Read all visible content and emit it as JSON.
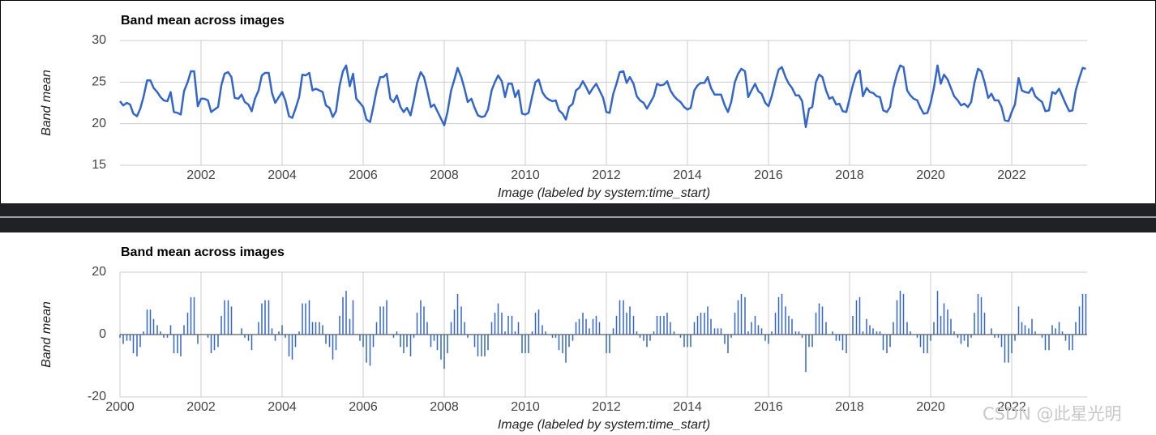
{
  "chart_data": [
    {
      "type": "line",
      "title": "Band mean across images",
      "y_label": "Band mean",
      "x_label": "Image (labeled by system:time_start)",
      "color": "#3366cc",
      "xlim": [
        2000,
        2023.86
      ],
      "xticks": [
        2002,
        2004,
        2006,
        2008,
        2010,
        2012,
        2014,
        2016,
        2018,
        2020,
        2022
      ],
      "ylim": [
        15,
        30
      ],
      "yticks": [
        15,
        20,
        25,
        30
      ],
      "grid": true,
      "x": [
        2000.0,
        2000.08,
        2000.17,
        2000.25,
        2000.33,
        2000.42,
        2000.5,
        2000.58,
        2000.67,
        2000.75,
        2000.83,
        2000.92,
        2001.0,
        2001.08,
        2001.17,
        2001.25,
        2001.33,
        2001.42,
        2001.5,
        2001.58,
        2001.67,
        2001.75,
        2001.83,
        2001.92,
        2002.0,
        2002.08,
        2002.17,
        2002.25,
        2002.33,
        2002.42,
        2002.5,
        2002.58,
        2002.67,
        2002.75,
        2002.83,
        2002.92,
        2003.0,
        2003.08,
        2003.17,
        2003.25,
        2003.33,
        2003.42,
        2003.5,
        2003.58,
        2003.67,
        2003.75,
        2003.83,
        2003.92,
        2004.0,
        2004.08,
        2004.17,
        2004.25,
        2004.33,
        2004.42,
        2004.5,
        2004.58,
        2004.67,
        2004.75,
        2004.83,
        2004.92,
        2005.0,
        2005.08,
        2005.17,
        2005.25,
        2005.33,
        2005.42,
        2005.5,
        2005.58,
        2005.67,
        2005.75,
        2005.83,
        2005.92,
        2006.0,
        2006.08,
        2006.17,
        2006.25,
        2006.33,
        2006.42,
        2006.5,
        2006.58,
        2006.67,
        2006.75,
        2006.83,
        2006.92,
        2007.0,
        2007.08,
        2007.17,
        2007.25,
        2007.33,
        2007.42,
        2007.5,
        2007.58,
        2007.67,
        2007.75,
        2007.83,
        2007.92,
        2008.0,
        2008.08,
        2008.17,
        2008.25,
        2008.33,
        2008.42,
        2008.5,
        2008.58,
        2008.67,
        2008.75,
        2008.83,
        2008.92,
        2009.0,
        2009.08,
        2009.17,
        2009.25,
        2009.33,
        2009.42,
        2009.5,
        2009.58,
        2009.67,
        2009.75,
        2009.83,
        2009.92,
        2010.0,
        2010.08,
        2010.17,
        2010.25,
        2010.33,
        2010.42,
        2010.5,
        2010.58,
        2010.67,
        2010.75,
        2010.83,
        2010.92,
        2011.0,
        2011.08,
        2011.17,
        2011.25,
        2011.33,
        2011.42,
        2011.5,
        2011.58,
        2011.67,
        2011.75,
        2011.83,
        2011.92,
        2012.0,
        2012.08,
        2012.17,
        2012.25,
        2012.33,
        2012.42,
        2012.5,
        2012.58,
        2012.67,
        2012.75,
        2012.83,
        2012.92,
        2013.0,
        2013.08,
        2013.17,
        2013.25,
        2013.33,
        2013.42,
        2013.5,
        2013.58,
        2013.67,
        2013.75,
        2013.83,
        2013.92,
        2014.0,
        2014.08,
        2014.17,
        2014.25,
        2014.33,
        2014.42,
        2014.5,
        2014.58,
        2014.67,
        2014.75,
        2014.83,
        2014.92,
        2015.0,
        2015.08,
        2015.17,
        2015.25,
        2015.33,
        2015.42,
        2015.5,
        2015.58,
        2015.67,
        2015.75,
        2015.83,
        2015.92,
        2016.0,
        2016.08,
        2016.17,
        2016.25,
        2016.33,
        2016.42,
        2016.5,
        2016.58,
        2016.67,
        2016.75,
        2016.83,
        2016.92,
        2017.0,
        2017.08,
        2017.17,
        2017.25,
        2017.33,
        2017.42,
        2017.5,
        2017.58,
        2017.67,
        2017.75,
        2017.83,
        2017.92,
        2018.0,
        2018.08,
        2018.17,
        2018.25,
        2018.33,
        2018.42,
        2018.5,
        2018.58,
        2018.67,
        2018.75,
        2018.83,
        2018.92,
        2019.0,
        2019.08,
        2019.17,
        2019.25,
        2019.33,
        2019.42,
        2019.5,
        2019.58,
        2019.67,
        2019.75,
        2019.83,
        2019.92,
        2020.0,
        2020.08,
        2020.17,
        2020.25,
        2020.33,
        2020.42,
        2020.5,
        2020.58,
        2020.67,
        2020.75,
        2020.83,
        2020.92,
        2021.0,
        2021.08,
        2021.17,
        2021.25,
        2021.33,
        2021.42,
        2021.5,
        2021.58,
        2021.67,
        2021.75,
        2021.83,
        2021.92,
        2022.0,
        2022.08,
        2022.17,
        2022.25,
        2022.33,
        2022.42,
        2022.5,
        2022.58,
        2022.67,
        2022.75,
        2022.83,
        2022.92,
        2023.0,
        2023.08,
        2023.17,
        2023.25,
        2023.33,
        2023.42,
        2023.5,
        2023.58,
        2023.67,
        2023.75,
        2023.83
      ],
      "values": [
        22.7,
        22.2,
        22.5,
        22.3,
        21.2,
        20.9,
        21.8,
        23.2,
        25.2,
        25.2,
        24.3,
        23.8,
        23.2,
        22.8,
        22.7,
        23.8,
        21.4,
        21.3,
        21.1,
        23.9,
        25.0,
        26.3,
        26.3,
        22.1,
        23.0,
        23.0,
        22.8,
        21.4,
        21.7,
        22.0,
        24.6,
        26.0,
        26.2,
        25.6,
        23.1,
        23.0,
        23.5,
        22.6,
        22.3,
        21.5,
        23.0,
        24.0,
        25.8,
        26.1,
        26.1,
        23.7,
        22.5,
        23.2,
        23.8,
        22.8,
        20.9,
        20.7,
        21.8,
        23.2,
        25.9,
        25.8,
        26.1,
        24.0,
        24.2,
        24.0,
        23.8,
        22.2,
        21.9,
        20.8,
        21.5,
        24.6,
        26.3,
        27.0,
        24.5,
        26.0,
        23.0,
        22.5,
        22.0,
        20.5,
        20.2,
        22.0,
        24.0,
        25.6,
        25.6,
        26.0,
        23.0,
        22.6,
        23.4,
        22.0,
        21.4,
        21.9,
        21.0,
        22.8,
        24.9,
        26.2,
        25.6,
        24.0,
        22.0,
        22.3,
        21.5,
        20.6,
        19.8,
        21.4,
        24.0,
        25.3,
        26.7,
        25.6,
        24.2,
        22.6,
        23.0,
        21.9,
        21.0,
        20.8,
        20.9,
        21.7,
        24.0,
        25.0,
        25.8,
        25.1,
        23.2,
        24.8,
        24.8,
        23.2,
        24.0,
        21.2,
        21.1,
        21.3,
        23.3,
        25.0,
        25.3,
        23.8,
        23.2,
        22.9,
        22.7,
        22.8,
        21.6,
        21.2,
        20.5,
        22.0,
        22.4,
        24.0,
        24.3,
        25.1,
        24.4,
        23.6,
        24.3,
        24.8,
        24.0,
        23.1,
        21.4,
        21.3,
        23.6,
        24.8,
        26.2,
        26.3,
        24.9,
        25.6,
        24.8,
        23.3,
        22.8,
        22.5,
        21.8,
        22.5,
        23.3,
        24.8,
        24.6,
        24.7,
        25.1,
        24.0,
        23.3,
        22.9,
        22.6,
        22.0,
        21.7,
        21.9,
        24.0,
        24.6,
        24.9,
        24.9,
        25.6,
        24.3,
        23.5,
        23.5,
        23.5,
        22.2,
        21.4,
        22.6,
        25.0,
        26.0,
        26.6,
        26.3,
        23.2,
        24.0,
        24.8,
        23.9,
        23.6,
        22.5,
        22.1,
        23.3,
        25.1,
        26.5,
        26.8,
        25.6,
        24.8,
        24.3,
        23.4,
        23.4,
        22.7,
        19.6,
        21.8,
        22.0,
        25.0,
        25.9,
        25.6,
        24.0,
        23.0,
        23.2,
        22.3,
        22.4,
        21.5,
        21.4,
        23.0,
        24.6,
        26.0,
        26.4,
        23.3,
        24.3,
        23.8,
        23.7,
        23.3,
        23.2,
        21.6,
        21.4,
        22.0,
        24.3,
        26.0,
        27.0,
        26.8,
        24.0,
        23.4,
        23.0,
        22.8,
        21.9,
        21.2,
        21.3,
        22.5,
        24.3,
        27.0,
        24.8,
        25.9,
        25.3,
        24.3,
        23.3,
        22.8,
        22.2,
        22.4,
        22.0,
        22.6,
        24.9,
        26.6,
        26.3,
        25.0,
        23.1,
        23.6,
        22.8,
        22.8,
        22.0,
        20.4,
        20.3,
        21.4,
        22.3,
        25.5,
        24.0,
        23.8,
        23.7,
        24.3,
        23.3,
        22.9,
        22.6,
        21.5,
        21.6,
        23.8,
        23.6,
        24.2,
        23.3,
        22.4,
        21.5,
        21.6,
        24.0,
        25.5,
        26.7,
        26.6
      ]
    },
    {
      "type": "bar",
      "title": "Band mean across images",
      "y_label": "Band mean",
      "x_label": "Image (labeled by system:time_start)",
      "color": "#3366cc",
      "xlim": [
        2000,
        2023.86
      ],
      "xticks": [
        2000,
        2002,
        2004,
        2006,
        2008,
        2010,
        2012,
        2014,
        2016,
        2018,
        2020,
        2022
      ],
      "ylim": [
        -20,
        20
      ],
      "yticks": [
        -20,
        0,
        20
      ],
      "grid": true,
      "x": [
        2000.0,
        2000.08,
        2000.17,
        2000.25,
        2000.33,
        2000.42,
        2000.5,
        2000.58,
        2000.67,
        2000.75,
        2000.83,
        2000.92,
        2001.0,
        2001.08,
        2001.17,
        2001.25,
        2001.33,
        2001.42,
        2001.5,
        2001.58,
        2001.67,
        2001.75,
        2001.83,
        2001.92,
        2002.0,
        2002.08,
        2002.17,
        2002.25,
        2002.33,
        2002.42,
        2002.5,
        2002.58,
        2002.67,
        2002.75,
        2002.83,
        2002.92,
        2003.0,
        2003.08,
        2003.17,
        2003.25,
        2003.33,
        2003.42,
        2003.5,
        2003.58,
        2003.67,
        2003.75,
        2003.83,
        2003.92,
        2004.0,
        2004.08,
        2004.17,
        2004.25,
        2004.33,
        2004.42,
        2004.5,
        2004.58,
        2004.67,
        2004.75,
        2004.83,
        2004.92,
        2005.0,
        2005.08,
        2005.17,
        2005.25,
        2005.33,
        2005.42,
        2005.5,
        2005.58,
        2005.67,
        2005.75,
        2005.83,
        2005.92,
        2006.0,
        2006.08,
        2006.17,
        2006.25,
        2006.33,
        2006.42,
        2006.5,
        2006.58,
        2006.67,
        2006.75,
        2006.83,
        2006.92,
        2007.0,
        2007.08,
        2007.17,
        2007.25,
        2007.33,
        2007.42,
        2007.5,
        2007.58,
        2007.67,
        2007.75,
        2007.83,
        2007.92,
        2008.0,
        2008.08,
        2008.17,
        2008.25,
        2008.33,
        2008.42,
        2008.5,
        2008.58,
        2008.67,
        2008.75,
        2008.83,
        2008.92,
        2009.0,
        2009.08,
        2009.17,
        2009.25,
        2009.33,
        2009.42,
        2009.5,
        2009.58,
        2009.67,
        2009.75,
        2009.83,
        2009.92,
        2010.0,
        2010.08,
        2010.17,
        2010.25,
        2010.33,
        2010.42,
        2010.5,
        2010.58,
        2010.67,
        2010.75,
        2010.83,
        2010.92,
        2011.0,
        2011.08,
        2011.17,
        2011.25,
        2011.33,
        2011.42,
        2011.5,
        2011.58,
        2011.67,
        2011.75,
        2011.83,
        2011.92,
        2012.0,
        2012.08,
        2012.17,
        2012.25,
        2012.33,
        2012.42,
        2012.5,
        2012.58,
        2012.67,
        2012.75,
        2012.83,
        2012.92,
        2013.0,
        2013.08,
        2013.17,
        2013.25,
        2013.33,
        2013.42,
        2013.5,
        2013.58,
        2013.67,
        2013.75,
        2013.83,
        2013.92,
        2014.0,
        2014.08,
        2014.17,
        2014.25,
        2014.33,
        2014.42,
        2014.5,
        2014.58,
        2014.67,
        2014.75,
        2014.83,
        2014.92,
        2015.0,
        2015.08,
        2015.17,
        2015.25,
        2015.33,
        2015.42,
        2015.5,
        2015.58,
        2015.67,
        2015.75,
        2015.83,
        2015.92,
        2016.0,
        2016.08,
        2016.17,
        2016.25,
        2016.33,
        2016.42,
        2016.5,
        2016.58,
        2016.67,
        2016.75,
        2016.83,
        2016.92,
        2017.0,
        2017.08,
        2017.17,
        2017.25,
        2017.33,
        2017.42,
        2017.5,
        2017.58,
        2017.67,
        2017.75,
        2017.83,
        2017.92,
        2018.0,
        2018.08,
        2018.17,
        2018.25,
        2018.33,
        2018.42,
        2018.5,
        2018.58,
        2018.67,
        2018.75,
        2018.83,
        2018.92,
        2019.0,
        2019.08,
        2019.17,
        2019.25,
        2019.33,
        2019.42,
        2019.5,
        2019.58,
        2019.67,
        2019.75,
        2019.83,
        2019.92,
        2020.0,
        2020.08,
        2020.17,
        2020.25,
        2020.33,
        2020.42,
        2020.5,
        2020.58,
        2020.67,
        2020.75,
        2020.83,
        2020.92,
        2021.0,
        2021.08,
        2021.17,
        2021.25,
        2021.33,
        2021.42,
        2021.5,
        2021.58,
        2021.67,
        2021.75,
        2021.83,
        2021.92,
        2022.0,
        2022.08,
        2022.17,
        2022.25,
        2022.33,
        2022.42,
        2022.5,
        2022.58,
        2022.67,
        2022.75,
        2022.83,
        2022.92,
        2023.0,
        2023.08,
        2023.17,
        2023.25,
        2023.33,
        2023.42,
        2023.5,
        2023.58,
        2023.67,
        2023.75,
        2023.83
      ],
      "values": [
        -1,
        -3,
        -2,
        -2,
        -6,
        -7,
        -4,
        1,
        8,
        8,
        5,
        3,
        1,
        -1,
        -1,
        3,
        -6,
        -6,
        -7,
        3,
        7,
        12,
        12,
        -3,
        0,
        0,
        -1,
        -6,
        -5,
        -4,
        6,
        11,
        11,
        9,
        0,
        0,
        2,
        -1,
        -2,
        -5,
        0,
        4,
        10,
        11,
        11,
        2,
        -2,
        1,
        3,
        -1,
        -7,
        -8,
        -4,
        1,
        10,
        10,
        11,
        4,
        4,
        4,
        3,
        -3,
        -4,
        -8,
        -5,
        6,
        12,
        14,
        5,
        11,
        0,
        -2,
        -4,
        -9,
        -10,
        -4,
        4,
        9,
        9,
        11,
        0,
        -1,
        1,
        -4,
        -6,
        -4,
        -7,
        -1,
        7,
        11,
        9,
        4,
        -4,
        -2,
        -5,
        -8,
        -11,
        -6,
        4,
        8,
        13,
        9,
        4,
        -1,
        0,
        -4,
        -7,
        -7,
        -7,
        -5,
        4,
        7,
        10,
        7,
        1,
        6,
        6,
        1,
        4,
        -6,
        -6,
        -6,
        1,
        7,
        8,
        3,
        1,
        0,
        -1,
        -1,
        -5,
        -6,
        -9,
        -4,
        -2,
        4,
        5,
        7,
        5,
        2,
        5,
        6,
        4,
        0,
        -6,
        -6,
        2,
        6,
        11,
        11,
        7,
        9,
        6,
        1,
        -1,
        -2,
        -4,
        -2,
        1,
        6,
        6,
        6,
        7,
        4,
        1,
        0,
        -1,
        -4,
        -4,
        -4,
        4,
        6,
        7,
        7,
        9,
        5,
        2,
        2,
        2,
        -3,
        -6,
        -1,
        7,
        11,
        13,
        12,
        1,
        4,
        6,
        3,
        2,
        -2,
        -3,
        1,
        7,
        12,
        13,
        9,
        6,
        5,
        1,
        1,
        -1,
        -12,
        -4,
        -4,
        7,
        10,
        9,
        4,
        0,
        1,
        -2,
        -2,
        -5,
        -6,
        0,
        6,
        11,
        12,
        1,
        5,
        3,
        2,
        1,
        1,
        -5,
        -6,
        -4,
        4,
        11,
        14,
        13,
        4,
        1,
        0,
        -1,
        -4,
        -6,
        -6,
        -2,
        4,
        14,
        6,
        10,
        8,
        5,
        1,
        -1,
        -3,
        -2,
        -4,
        -1,
        7,
        13,
        12,
        7,
        0,
        2,
        -1,
        -1,
        -4,
        -9,
        -9,
        -6,
        -2,
        9,
        4,
        3,
        2,
        5,
        1,
        0,
        -1,
        -5,
        -5,
        3,
        2,
        4,
        1,
        -2,
        -5,
        -5,
        4,
        9,
        13,
        13
      ]
    }
  ],
  "watermark": "CSDN @此星光明"
}
